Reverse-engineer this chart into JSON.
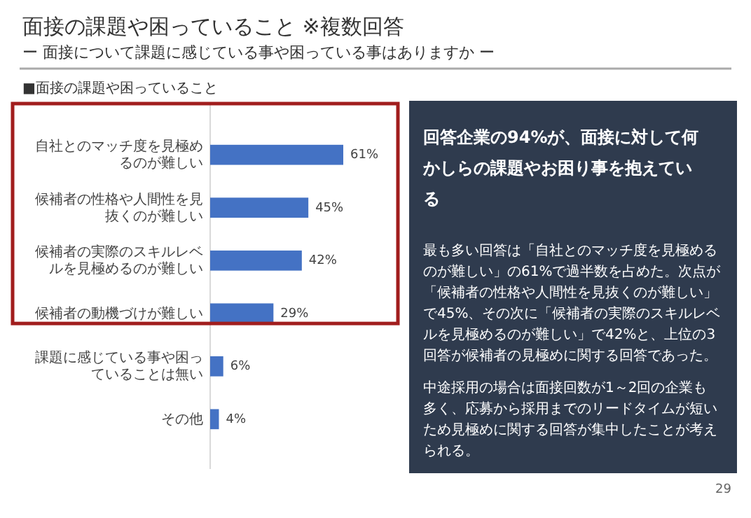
{
  "chart_data": [
    {
      "type": "bar",
      "orientation": "horizontal",
      "title": "面接の課題や困っていること ※複数回答",
      "subtitle": "ー 面接について課題に感じている事や困っている事はありますか ー",
      "categories": [
        "自社とのマッチ度を見極めるのが難しい",
        "候補者の性格や人間性を見抜くのが難しい",
        "候補者の実際のスキルレベルを見極めるのが難しい",
        "候補者の動機づけが難しい",
        "課題に感じている事や困っていることは無い",
        "その他"
      ],
      "values": [
        61,
        45,
        42,
        29,
        6,
        4
      ],
      "color": "#4472c4",
      "value_labels": [
        "61%",
        "45%",
        "42%",
        "29%",
        "6%",
        "4%"
      ],
      "annotations": [
        "■面接の課題や困っていること",
        "29"
      ]
    },
    {
      "type": "other",
      "title": "回答企業の94%が、面接に対して何かしらの課題やお困り事を抱えている",
      "annotations": [
        "最も多い回答は「自社とのマッチ度を見極めるのが難しい」の61%で過半数を占めた。次点が「候補者の性格や人間性を見抜くのが難しい」で45%、その次に「候補者の実際のスキルレベルを見極めるのが難しい」で42%と、上位の3回答が候補者の見極めに関する回答であった。",
        "中途採用の場合は面接回数が1～2回の企業も多く、応募から採用までのリードタイムが短いため見極めに関する回答が集中したことが考えられる。"
      ]
    }
  ]
}
